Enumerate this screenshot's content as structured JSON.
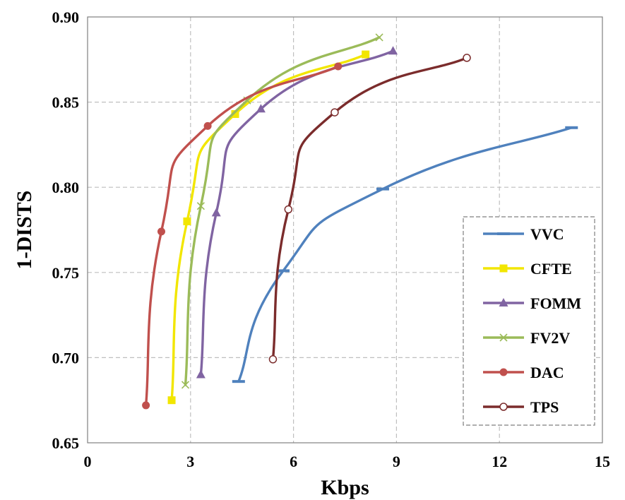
{
  "chart_data": {
    "type": "line",
    "xlabel": "Kbps",
    "ylabel": "1-DISTS",
    "xlim": [
      0,
      15
    ],
    "ylim": [
      0.65,
      0.9
    ],
    "xticks": [
      0,
      3,
      6,
      9,
      12,
      15
    ],
    "yticks": [
      0.65,
      0.7,
      0.75,
      0.8,
      0.85,
      0.9
    ],
    "xtick_labels": [
      "0",
      "3",
      "6",
      "9",
      "12",
      "15"
    ],
    "ytick_labels": [
      "0.65",
      "0.70",
      "0.75",
      "0.80",
      "0.85",
      "0.90"
    ],
    "grid": true,
    "legend_position": "lower-right",
    "series": [
      {
        "name": "VVC",
        "color": "#4F81BD",
        "marker": "dash",
        "x": [
          4.4,
          5.7,
          8.6,
          14.1
        ],
        "y": [
          0.686,
          0.751,
          0.799,
          0.835
        ]
      },
      {
        "name": "CFTE",
        "color": "#F2E600",
        "marker": "square",
        "x": [
          2.45,
          2.9,
          4.3,
          8.1
        ],
        "y": [
          0.675,
          0.78,
          0.843,
          0.878
        ]
      },
      {
        "name": "FOMM",
        "color": "#8064A2",
        "marker": "triangle",
        "x": [
          3.3,
          3.75,
          5.05,
          8.9
        ],
        "y": [
          0.69,
          0.785,
          0.846,
          0.88
        ]
      },
      {
        "name": "FV2V",
        "color": "#9BBB59",
        "marker": "x",
        "x": [
          2.85,
          3.3,
          4.65,
          8.5
        ],
        "y": [
          0.684,
          0.789,
          0.851,
          0.888
        ]
      },
      {
        "name": "DAC",
        "color": "#C0504D",
        "marker": "circle",
        "x": [
          1.7,
          2.15,
          3.5,
          7.3
        ],
        "y": [
          0.672,
          0.774,
          0.836,
          0.871
        ]
      },
      {
        "name": "TPS",
        "color": "#7B2C2C",
        "marker": "open-circle",
        "x": [
          5.4,
          5.85,
          7.2,
          11.05
        ],
        "y": [
          0.699,
          0.787,
          0.844,
          0.876
        ]
      }
    ]
  }
}
